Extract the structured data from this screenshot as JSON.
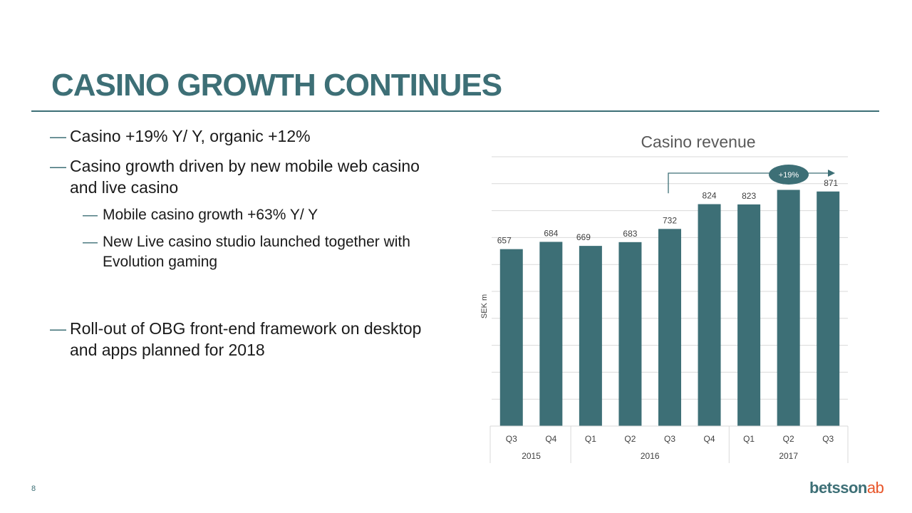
{
  "slide": {
    "title": "CASINO GROWTH CONTINUES",
    "page_number": "8",
    "logo": {
      "main": "betsson",
      "suffix": "ab"
    },
    "bullets": [
      {
        "dash": "—",
        "text": "Casino +19% Y/ Y, organic +12%",
        "level": 1
      },
      {
        "dash": "—",
        "text": "Casino growth driven by new mobile web casino and live casino",
        "level": 1
      },
      {
        "dash": "—",
        "text": "Mobile casino growth +63% Y/ Y",
        "level": 2
      },
      {
        "dash": "—",
        "text": "New Live casino studio launched together with Evolution gaming",
        "level": 2
      },
      {
        "dash": "—",
        "text": "Roll-out of OBG front-end framework on desktop and apps planned for 2018",
        "level": 1
      }
    ]
  },
  "colors": {
    "accent": "#3d6f76",
    "bar": "#3d6f76",
    "logo_suffix": "#e8562a",
    "gridline": "#d9d9d9"
  },
  "chart_data": {
    "type": "bar",
    "title": "Casino revenue",
    "ylabel": "SEK m",
    "xlabel": "",
    "ylim": [
      0,
      1000
    ],
    "grid": true,
    "categories": [
      "Q3",
      "Q4",
      "Q1",
      "Q2",
      "Q3",
      "Q4",
      "Q1",
      "Q2",
      "Q3"
    ],
    "groups": [
      {
        "label": "2015",
        "count": 2
      },
      {
        "label": "2016",
        "count": 4
      },
      {
        "label": "2017",
        "count": 3
      }
    ],
    "values": [
      657,
      684,
      669,
      683,
      732,
      824,
      823,
      877,
      871
    ],
    "annotation": {
      "text": "+19%",
      "from_index": 4,
      "to_index": 8
    }
  }
}
